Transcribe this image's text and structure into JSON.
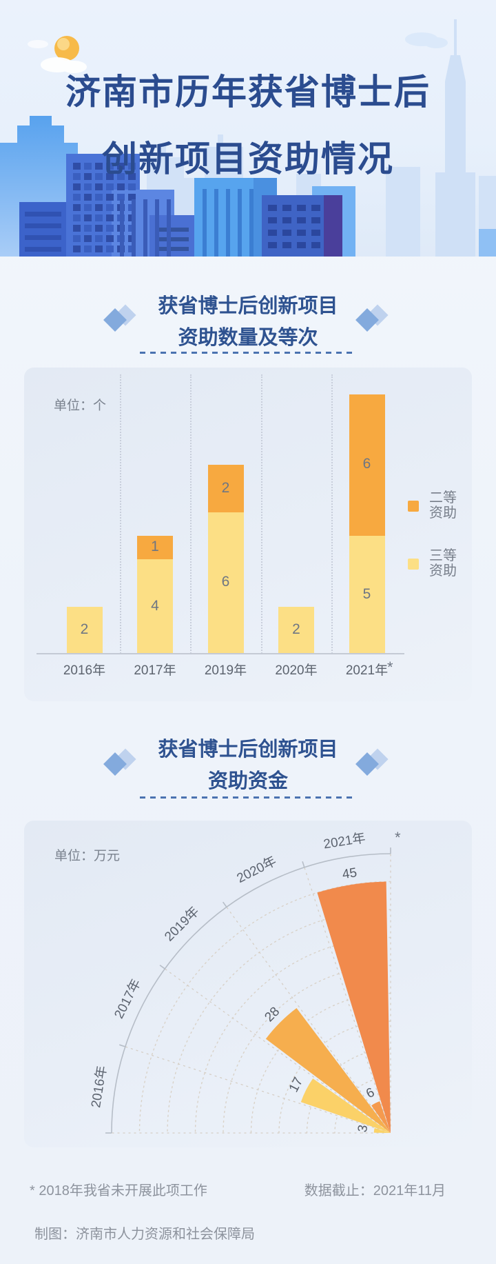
{
  "header": {
    "title_line1": "济南市历年获省博士后",
    "title_line2": "创新项目资助情况"
  },
  "section1": {
    "title_line1": "获省博士后创新项目",
    "title_line2": "资助数量及等次"
  },
  "section2": {
    "title_line1": "获省博士后创新项目",
    "title_line2": "资助资金"
  },
  "chart_data": [
    {
      "type": "bar",
      "stacked": true,
      "title": "获省博士后创新项目资助数量及等次",
      "unit_label": "单位：个",
      "footnote_marker": "*",
      "categories": [
        "2016年",
        "2017年",
        "2019年",
        "2020年",
        "2021年"
      ],
      "series": [
        {
          "name": "三等资助",
          "color": "#fcdf85",
          "values": [
            2,
            4,
            6,
            2,
            5
          ]
        },
        {
          "name": "二等资助",
          "color": "#f7a940",
          "values": [
            0,
            1,
            2,
            0,
            6
          ]
        }
      ],
      "legend_position": "right",
      "grid": "vertical-dotted"
    },
    {
      "type": "polar_bar",
      "title": "获省博士后创新项目资助资金",
      "unit_label": "单位：万元",
      "footnote_marker": "*",
      "angle_span_deg": 90,
      "categories": [
        "2016年",
        "2017年",
        "2019年",
        "2020年",
        "2021年"
      ],
      "values": [
        3,
        17,
        28,
        6,
        45
      ],
      "colors": [
        "#fbd368",
        "#fbd168",
        "#f6ae4e",
        "#f59a4e",
        "#f18a4c"
      ],
      "r_axis": {
        "max": 50,
        "grid_step": 5
      }
    }
  ],
  "footer": {
    "note": "* 2018年我省未开展此项工作",
    "cutoff": "数据截止：2021年11月",
    "credit": "制图：济南市人力资源和社会保障局"
  }
}
